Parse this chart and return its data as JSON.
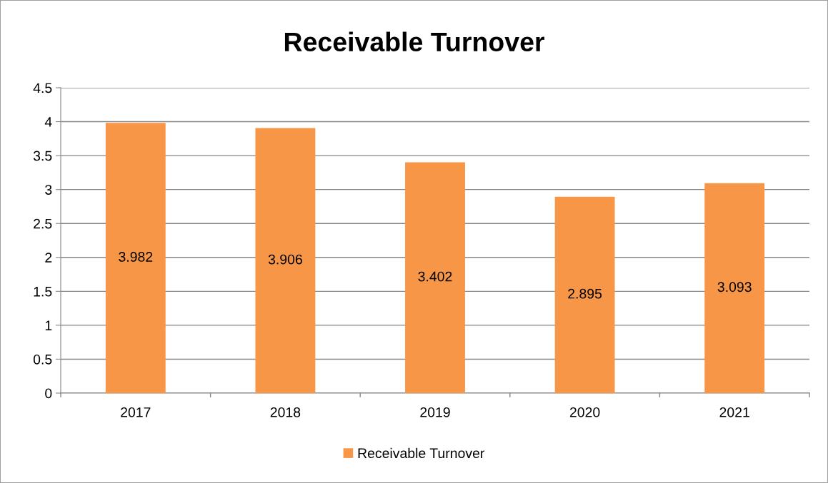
{
  "chart_data": {
    "type": "bar",
    "title": "Receivable Turnover",
    "categories": [
      "2017",
      "2018",
      "2019",
      "2020",
      "2021"
    ],
    "series": [
      {
        "name": "Receivable Turnover",
        "color": "#f79646",
        "values": [
          3.982,
          3.906,
          3.402,
          2.895,
          3.093
        ]
      }
    ],
    "ylim": [
      0,
      4.5
    ],
    "yticks": [
      0,
      0.5,
      1,
      1.5,
      2,
      2.5,
      3,
      3.5,
      4,
      4.5
    ],
    "grid": "y",
    "legend": "bottom",
    "data_labels": true
  }
}
